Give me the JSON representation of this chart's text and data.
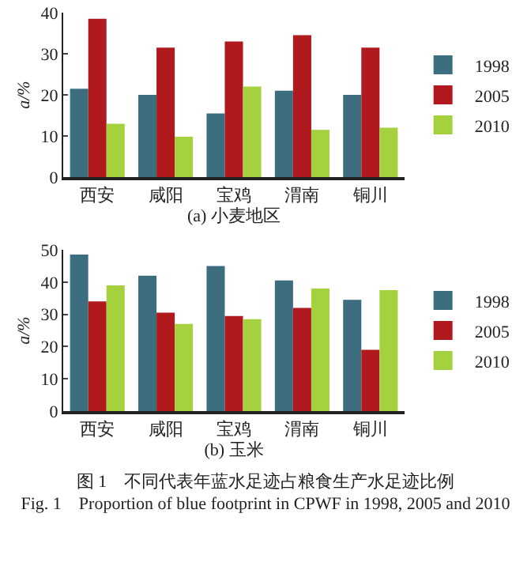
{
  "chart_data": [
    {
      "type": "bar",
      "xlabel": "(a) 小麦地区",
      "ylabel": "a/%",
      "categories": [
        "西安",
        "咸阳",
        "宝鸡",
        "渭南",
        "铜川"
      ],
      "series": [
        {
          "name": "1998",
          "color": "#3d6e80",
          "values": [
            21.5,
            20,
            15.5,
            21,
            20
          ]
        },
        {
          "name": "2005",
          "color": "#b0191e",
          "values": [
            38.5,
            31.5,
            33,
            34.5,
            31.5
          ]
        },
        {
          "name": "2010",
          "color": "#a6d13e",
          "values": [
            13,
            9.8,
            22,
            11.5,
            12
          ]
        }
      ],
      "ylim": [
        0,
        40
      ],
      "yticks": [
        0,
        10,
        20,
        30,
        40
      ],
      "grid": false,
      "legend": "right"
    },
    {
      "type": "bar",
      "xlabel": "(b) 玉米",
      "ylabel": "a/%",
      "categories": [
        "西安",
        "咸阳",
        "宝鸡",
        "渭南",
        "铜川"
      ],
      "series": [
        {
          "name": "1998",
          "color": "#3d6e80",
          "values": [
            48.5,
            42,
            45,
            40.5,
            34.5
          ]
        },
        {
          "name": "2005",
          "color": "#b0191e",
          "values": [
            34,
            30.5,
            29.5,
            32,
            19
          ]
        },
        {
          "name": "2010",
          "color": "#a6d13e",
          "values": [
            39,
            27,
            28.5,
            38,
            37.5
          ]
        }
      ],
      "ylim": [
        0,
        50
      ],
      "yticks": [
        0,
        10,
        20,
        30,
        40,
        50
      ],
      "grid": false,
      "legend": "right",
      "annotations": [
        "图 1　不同代表年蓝水足迹占粮食生产水足迹比例",
        "Fig. 1　Proportion of blue footprint in CPWF in 1998, 2005 and 2010"
      ]
    }
  ]
}
